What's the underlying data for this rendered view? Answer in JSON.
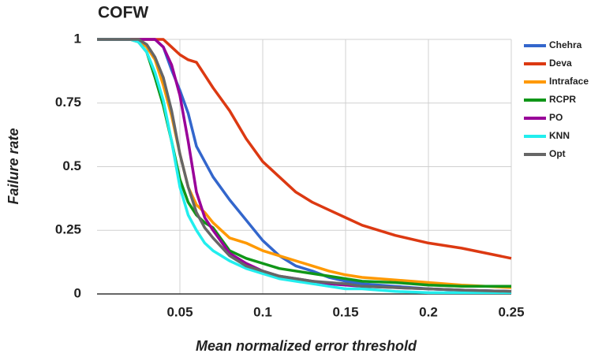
{
  "chart_data": {
    "type": "line",
    "title": "COFW",
    "x_label": "Mean normalized error threshold",
    "y_label": "Failure rate",
    "x": [
      0,
      0.02,
      0.025,
      0.03,
      0.035,
      0.04,
      0.045,
      0.05,
      0.055,
      0.06,
      0.065,
      0.07,
      0.08,
      0.09,
      0.1,
      0.11,
      0.12,
      0.13,
      0.14,
      0.15,
      0.16,
      0.18,
      0.2,
      0.22,
      0.25
    ],
    "series": [
      {
        "name": "Chehra",
        "color": "#3366cc",
        "values": [
          1,
          1,
          1,
          1,
          1,
          0.97,
          0.88,
          0.8,
          0.71,
          0.58,
          0.52,
          0.46,
          0.37,
          0.29,
          0.21,
          0.15,
          0.11,
          0.09,
          0.065,
          0.05,
          0.04,
          0.03,
          0.02,
          0.015,
          0.01
        ]
      },
      {
        "name": "Deva",
        "color": "#dc3912",
        "values": [
          1,
          1,
          1,
          1,
          1,
          1,
          0.97,
          0.94,
          0.92,
          0.91,
          0.86,
          0.81,
          0.72,
          0.61,
          0.52,
          0.46,
          0.4,
          0.36,
          0.33,
          0.3,
          0.27,
          0.23,
          0.2,
          0.18,
          0.14
        ]
      },
      {
        "name": "Intraface",
        "color": "#ff9900",
        "values": [
          1,
          1,
          1,
          0.97,
          0.92,
          0.82,
          0.7,
          0.55,
          0.42,
          0.35,
          0.32,
          0.28,
          0.22,
          0.2,
          0.17,
          0.15,
          0.13,
          0.11,
          0.09,
          0.075,
          0.065,
          0.055,
          0.045,
          0.035,
          0.025
        ]
      },
      {
        "name": "RCPR",
        "color": "#109618",
        "values": [
          1,
          1,
          0.99,
          0.95,
          0.85,
          0.74,
          0.6,
          0.45,
          0.36,
          0.31,
          0.28,
          0.26,
          0.17,
          0.14,
          0.12,
          0.1,
          0.09,
          0.08,
          0.07,
          0.06,
          0.05,
          0.045,
          0.035,
          0.03,
          0.03
        ]
      },
      {
        "name": "PO",
        "color": "#990099",
        "values": [
          1,
          1,
          1,
          1,
          1,
          0.97,
          0.9,
          0.78,
          0.6,
          0.4,
          0.3,
          0.25,
          0.16,
          0.12,
          0.09,
          0.07,
          0.06,
          0.05,
          0.04,
          0.035,
          0.03,
          0.025,
          0.02,
          0.015,
          0.01
        ]
      },
      {
        "name": "KNN",
        "color": "#22eeee",
        "values": [
          1,
          1,
          0.99,
          0.95,
          0.87,
          0.76,
          0.6,
          0.42,
          0.31,
          0.25,
          0.2,
          0.17,
          0.13,
          0.1,
          0.08,
          0.06,
          0.05,
          0.04,
          0.03,
          0.02,
          0.02,
          0.01,
          0.005,
          0.005,
          0.005
        ]
      },
      {
        "name": "Opt",
        "color": "#666666",
        "values": [
          1,
          1,
          1,
          0.98,
          0.93,
          0.85,
          0.72,
          0.55,
          0.42,
          0.32,
          0.26,
          0.22,
          0.15,
          0.11,
          0.09,
          0.07,
          0.06,
          0.05,
          0.045,
          0.04,
          0.03,
          0.025,
          0.02,
          0.015,
          0.01
        ]
      }
    ],
    "xlim": [
      0,
      0.25
    ],
    "xticks": [
      0.05,
      0.1,
      0.15,
      0.2,
      0.25
    ],
    "ylim": [
      0,
      1
    ],
    "yticks": [
      0,
      0.25,
      0.5,
      0.75,
      1
    ],
    "grid": true,
    "legend": "right"
  }
}
